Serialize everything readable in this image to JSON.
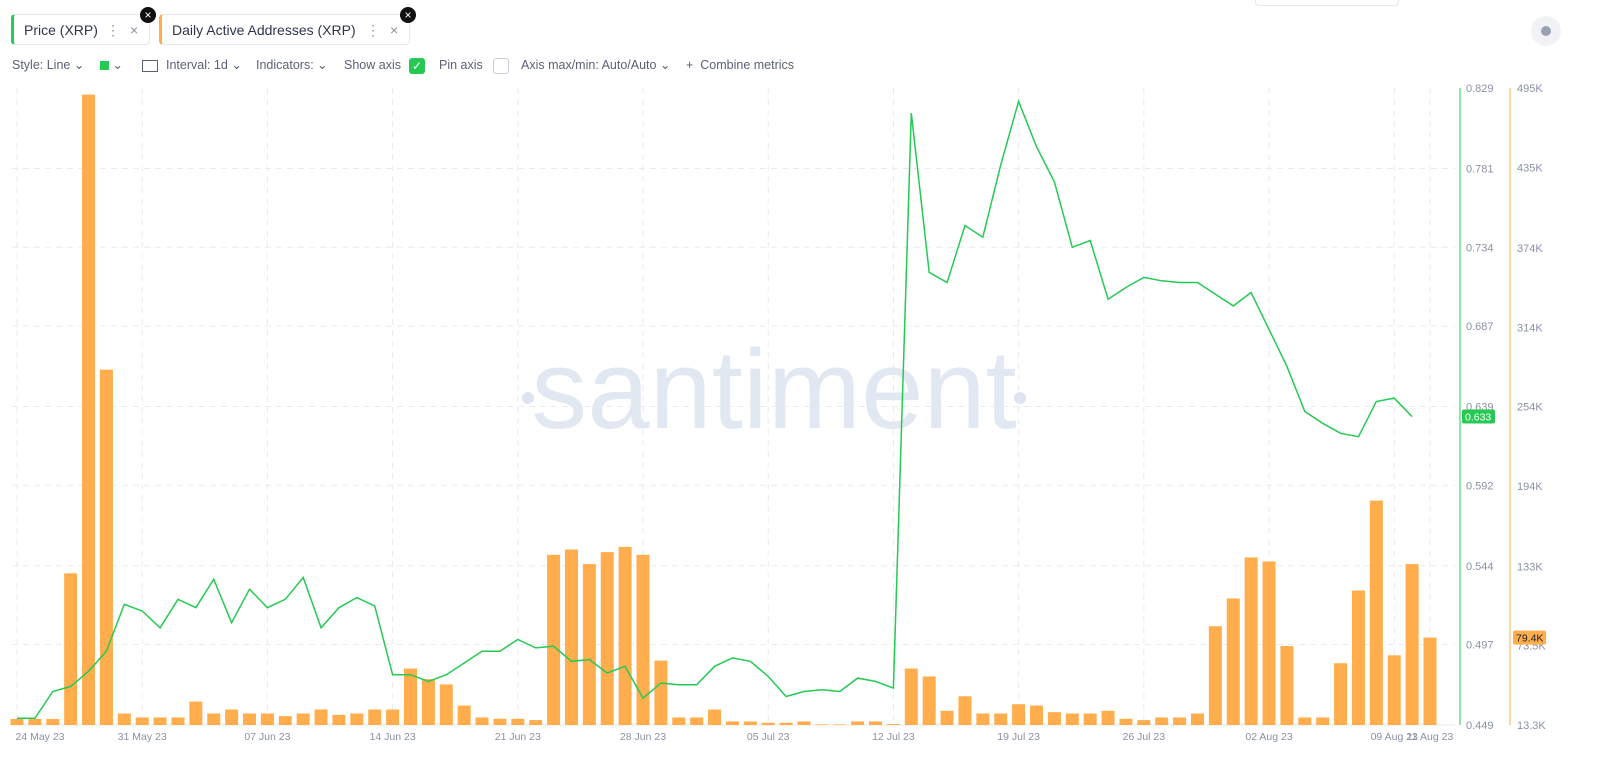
{
  "ui": {
    "tabs": [
      "Price (XRP)",
      "Daily Active Addresses (XRP)"
    ],
    "toolbar": {
      "style": "Style: Line",
      "interval": "Interval: 1d",
      "indicators": "Indicators:",
      "show_axis": "Show axis",
      "pin_axis": "Pin axis",
      "axis_range": "Axis max/min: Auto/Auto",
      "combine": "Combine metrics"
    },
    "watermark": "santiment"
  },
  "chart_data": {
    "type": "combo",
    "categories": [
      "24 May 23",
      null,
      null,
      null,
      null,
      null,
      null,
      "31 May 23",
      null,
      null,
      null,
      null,
      null,
      null,
      "07 Jun 23",
      null,
      null,
      null,
      null,
      null,
      null,
      "14 Jun 23",
      null,
      null,
      null,
      null,
      null,
      null,
      "21 Jun 23",
      null,
      null,
      null,
      null,
      null,
      null,
      "28 Jun 23",
      null,
      null,
      null,
      null,
      null,
      null,
      "05 Jul 23",
      null,
      null,
      null,
      null,
      null,
      null,
      "12 Jul 23",
      null,
      null,
      null,
      null,
      null,
      null,
      "19 Jul 23",
      null,
      null,
      null,
      null,
      null,
      null,
      "26 Jul 23",
      null,
      null,
      null,
      null,
      null,
      null,
      "02 Aug 23",
      null,
      null,
      null,
      null,
      null,
      null,
      "09 Aug 23",
      null,
      "11 Aug 23"
    ],
    "series": [
      {
        "name": "Price (XRP)",
        "type": "line",
        "color": "#26c953",
        "axis": "y",
        "values": [
          0.453,
          0.453,
          0.469,
          0.472,
          0.481,
          0.493,
          0.521,
          0.517,
          0.507,
          0.524,
          0.519,
          0.536,
          0.51,
          0.53,
          0.519,
          0.524,
          0.537,
          0.507,
          0.519,
          0.525,
          0.52,
          0.479,
          0.479,
          0.475,
          0.479,
          0.486,
          0.493,
          0.493,
          0.5,
          0.495,
          0.496,
          0.487,
          0.488,
          0.48,
          0.484,
          0.465,
          0.474,
          0.473,
          0.473,
          0.484,
          0.489,
          0.487,
          0.478,
          0.466,
          0.469,
          0.47,
          0.469,
          0.477,
          0.475,
          0.471,
          0.814,
          0.719,
          0.713,
          0.747,
          0.74,
          0.783,
          0.821,
          0.794,
          0.773,
          0.734,
          0.738,
          0.703,
          0.71,
          0.716,
          0.714,
          0.713,
          0.713,
          0.706,
          0.699,
          0.707,
          0.685,
          0.663,
          0.636,
          0.629,
          0.623,
          0.621,
          0.642,
          0.644,
          0.633,
          null
        ]
      },
      {
        "name": "Daily Active Addresses (XRP)",
        "type": "bar",
        "color": "#ffad4d",
        "axis": "y2",
        "values": [
          17800,
          17800,
          17800,
          128000,
          490000,
          282000,
          22000,
          19000,
          19000,
          19000,
          31000,
          22000,
          25000,
          22000,
          22000,
          20000,
          22000,
          25000,
          21000,
          22000,
          25000,
          25000,
          56000,
          48000,
          44000,
          28000,
          19000,
          18000,
          18000,
          17000,
          142000,
          146000,
          135000,
          144000,
          148000,
          142000,
          62000,
          19000,
          19000,
          25000,
          16000,
          16000,
          15000,
          15000,
          16000,
          13800,
          13800,
          16000,
          16000,
          14000,
          56000,
          50000,
          24000,
          35000,
          22000,
          22000,
          29000,
          28000,
          23000,
          22000,
          22000,
          24000,
          18000,
          17000,
          19000,
          19000,
          22000,
          88000,
          109000,
          140000,
          137000,
          73000,
          19000,
          19000,
          60000,
          115000,
          183000,
          66000,
          135000,
          79400
        ],
        "value_labels": [
          null,
          null,
          null,
          null,
          null,
          null,
          null,
          null,
          null,
          null,
          null,
          null,
          null,
          null,
          null,
          null,
          null,
          null,
          null,
          null,
          null,
          null,
          null,
          null,
          null,
          null,
          null,
          null,
          null,
          null,
          null,
          null,
          null,
          null,
          null,
          null,
          null,
          null,
          null,
          null,
          null,
          null,
          null,
          null,
          null,
          null,
          null,
          null,
          null,
          null,
          null,
          null,
          null,
          null,
          null,
          null,
          null,
          null,
          null,
          null,
          null,
          null,
          null,
          null,
          null,
          null,
          null,
          null,
          null,
          null,
          null,
          null,
          null,
          null,
          null,
          null,
          null,
          null,
          null,
          "79.4K"
        ]
      }
    ],
    "ylim": [
      0.449,
      0.829
    ],
    "yticks": [
      0.829,
      0.781,
      0.734,
      0.687,
      0.639,
      0.592,
      0.544,
      0.497,
      0.449
    ],
    "y2lim": [
      13300,
      495000
    ],
    "y2ticks": [
      {
        "value": 495000,
        "label": "495K"
      },
      {
        "value": 435000,
        "label": "435K"
      },
      {
        "value": 374000,
        "label": "374K"
      },
      {
        "value": 314000,
        "label": "314K"
      },
      {
        "value": 254000,
        "label": "254K"
      },
      {
        "value": 194000,
        "label": "194K"
      },
      {
        "value": 133000,
        "label": "133K"
      },
      {
        "value": 73500,
        "label": "73.5K"
      },
      {
        "value": 13300,
        "label": "13.3K"
      }
    ],
    "grid": true
  }
}
